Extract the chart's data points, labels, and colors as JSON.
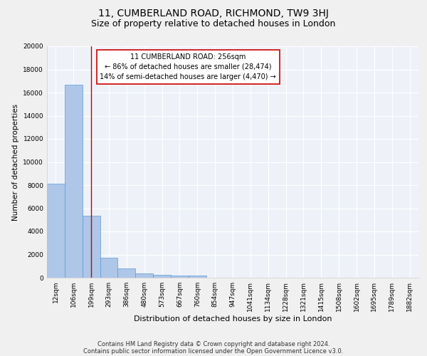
{
  "title": "11, CUMBERLAND ROAD, RICHMOND, TW9 3HJ",
  "subtitle": "Size of property relative to detached houses in London",
  "xlabel": "Distribution of detached houses by size in London",
  "ylabel": "Number of detached properties",
  "categories": [
    "12sqm",
    "106sqm",
    "199sqm",
    "293sqm",
    "386sqm",
    "480sqm",
    "573sqm",
    "667sqm",
    "760sqm",
    "854sqm",
    "947sqm",
    "1041sqm",
    "1134sqm",
    "1228sqm",
    "1321sqm",
    "1415sqm",
    "1508sqm",
    "1602sqm",
    "1695sqm",
    "1789sqm",
    "1882sqm"
  ],
  "values": [
    8100,
    16700,
    5350,
    1750,
    780,
    350,
    250,
    200,
    200,
    0,
    0,
    0,
    0,
    0,
    0,
    0,
    0,
    0,
    0,
    0,
    0
  ],
  "bar_color": "#aec6e8",
  "bar_edge_color": "#5b9bd5",
  "vline_x": 2.0,
  "vline_color": "#cc0000",
  "annotation_line1": "11 CUMBERLAND ROAD: 256sqm",
  "annotation_line2": "← 86% of detached houses are smaller (28,474)",
  "annotation_line3": "14% of semi-detached houses are larger (4,470) →",
  "annotation_box_edgecolor": "#cc0000",
  "annotation_fontsize": 7,
  "ylim": [
    0,
    20000
  ],
  "yticks": [
    0,
    2000,
    4000,
    6000,
    8000,
    10000,
    12000,
    14000,
    16000,
    18000,
    20000
  ],
  "title_fontsize": 10,
  "subtitle_fontsize": 9,
  "xlabel_fontsize": 8,
  "ylabel_fontsize": 7.5,
  "footer1": "Contains HM Land Registry data © Crown copyright and database right 2024.",
  "footer2": "Contains public sector information licensed under the Open Government Licence v3.0.",
  "bg_color": "#eef2f8",
  "grid_color": "#ffffff",
  "tick_fontsize": 6.5
}
